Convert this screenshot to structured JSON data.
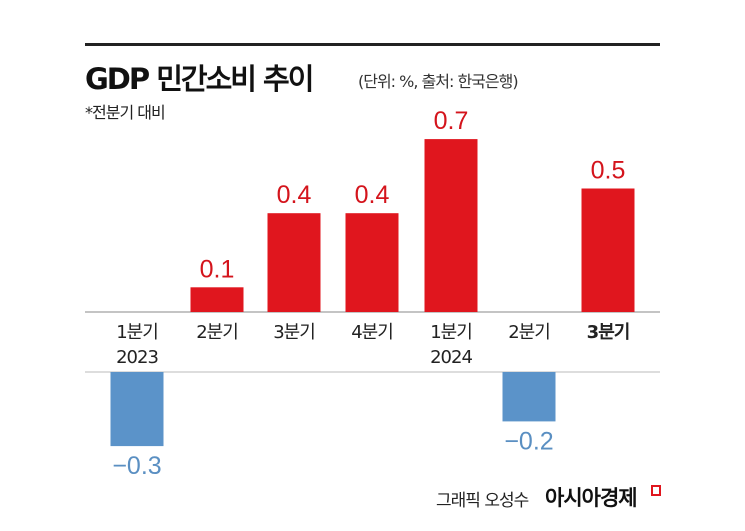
{
  "chart_data": {
    "type": "bar",
    "title": "GDP 민간소비 추이",
    "subtitle": "(단위: %, 출처: 한국은행)",
    "note": "*전분기 대비",
    "categories": [
      [
        "1분기",
        "2023"
      ],
      [
        "2분기"
      ],
      [
        "3분기"
      ],
      [
        "4분기"
      ],
      [
        "1분기",
        "2024"
      ],
      [
        "2분기"
      ],
      [
        "3분기"
      ]
    ],
    "values": [
      -0.3,
      0.1,
      0.4,
      0.4,
      0.7,
      -0.2,
      0.5
    ],
    "value_labels": [
      "−0.3",
      "0.1",
      "0.4",
      "0.4",
      "0.7",
      "−0.2",
      "0.5"
    ],
    "colors": {
      "positive": "#e0161e",
      "negative": "#5b93c9",
      "positive_label": "#d4141c",
      "negative_label": "#5a8fc2"
    },
    "grid": false,
    "legend": "none"
  },
  "footer": {
    "credit": "그래픽 오성수",
    "brand": "아시아경제"
  }
}
